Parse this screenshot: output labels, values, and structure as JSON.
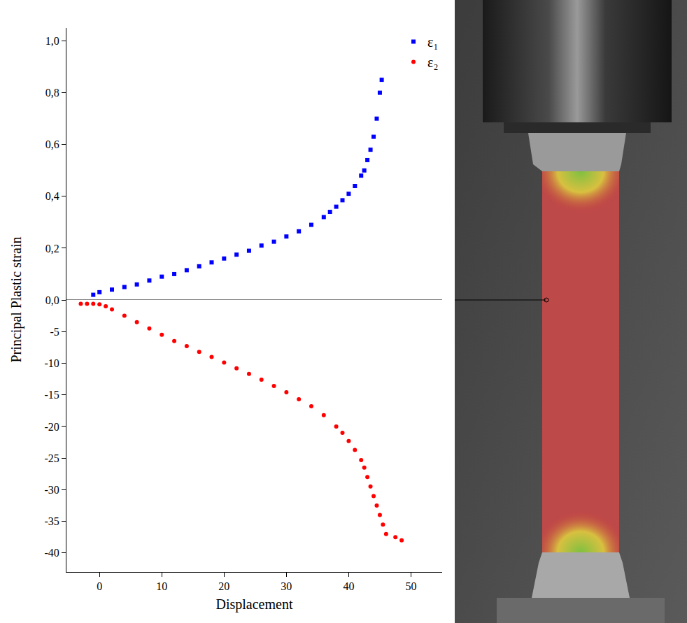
{
  "chart_data": {
    "type": "scatter",
    "x_label": "Displacement",
    "y_label": "Principal Plastic strain",
    "xlim": [
      -5.3,
      55
    ],
    "xticks": [
      0,
      10,
      20,
      30,
      40,
      50
    ],
    "ylim": [
      0,
      1.05
    ],
    "yticks": [
      {
        "value": 0,
        "label": "0,0"
      },
      {
        "value": 0.2,
        "label": "0,2"
      },
      {
        "value": 0.4,
        "label": "0,4"
      },
      {
        "value": 0.6,
        "label": "0,6"
      },
      {
        "value": 0.8,
        "label": "0,8"
      },
      {
        "value": 1.0,
        "label": "1,0"
      }
    ],
    "y2lim": [
      -43,
      0
    ],
    "y2ticks": [
      -40,
      -35,
      -30,
      -25,
      -20,
      -15,
      -10,
      -5
    ],
    "grid": false,
    "legend": "top right",
    "series": [
      {
        "name": "ε₁",
        "color": "#0000ff",
        "marker": "square",
        "x": [
          -1,
          0,
          2,
          4,
          6,
          8,
          10,
          12,
          14,
          16,
          18,
          20,
          22,
          24,
          26,
          28,
          30,
          32,
          34,
          36,
          37,
          38,
          39,
          40,
          41,
          42,
          42.5,
          43,
          43.5,
          44,
          44.5,
          45,
          45.3
        ],
        "values": [
          0.02,
          0.03,
          0.04,
          0.05,
          0.06,
          0.075,
          0.09,
          0.1,
          0.115,
          0.13,
          0.145,
          0.16,
          0.175,
          0.19,
          0.21,
          0.225,
          0.245,
          0.265,
          0.29,
          0.32,
          0.34,
          0.36,
          0.385,
          0.41,
          0.44,
          0.48,
          0.5,
          0.54,
          0.58,
          0.63,
          0.7,
          0.8,
          0.85
        ]
      },
      {
        "name": "ε₂",
        "color": "#ff0000",
        "marker": "circle",
        "axis": "y2",
        "x": [
          -3,
          -2,
          -1,
          0,
          1,
          2,
          4,
          6,
          8,
          10,
          12,
          14,
          16,
          18,
          20,
          22,
          24,
          26,
          28,
          30,
          32,
          34,
          36,
          38,
          39,
          40,
          41,
          42,
          42.5,
          43,
          43.5,
          44,
          44.5,
          45,
          45.5,
          46,
          47.5,
          48.5
        ],
        "values": [
          -0.6,
          -0.6,
          -0.6,
          -0.7,
          -1,
          -1.5,
          -2.5,
          -3.5,
          -4.5,
          -5.5,
          -6.5,
          -7.3,
          -8.2,
          -9,
          -9.9,
          -10.8,
          -11.7,
          -12.6,
          -13.6,
          -14.6,
          -15.7,
          -16.8,
          -18.2,
          -20,
          -21,
          -22.3,
          -23.7,
          -25.3,
          -26.5,
          -28,
          -29.5,
          -31,
          -32.5,
          -34,
          -35.5,
          -37,
          -37.5,
          -38
        ]
      }
    ]
  }
}
